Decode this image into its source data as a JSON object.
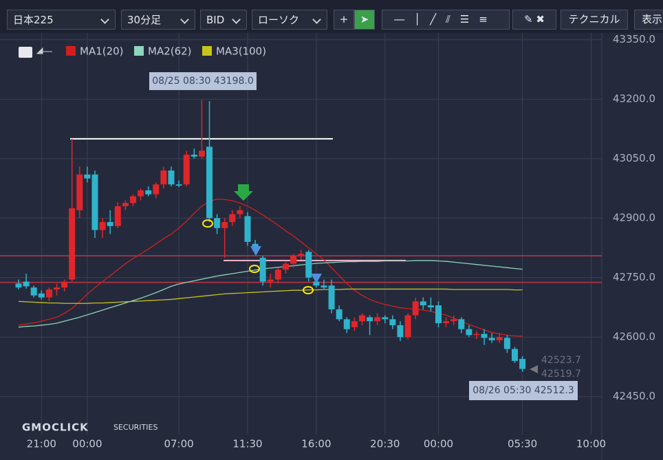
{
  "toolbar": {
    "symbol": "日本225",
    "interval": "30分足",
    "price_type": "BID",
    "chart_style": "ローソク",
    "technical": "テクニカル",
    "display": "表示"
  },
  "logo": {
    "brand": "GMOCLICK",
    "sub": "SECURITIES"
  },
  "chart_data": {
    "type": "candlestick",
    "categories": [
      null,
      null,
      null,
      "21:00",
      null,
      null,
      null,
      null,
      null,
      "00:00",
      null,
      null,
      null,
      null,
      null,
      null,
      null,
      null,
      null,
      null,
      null,
      "07:00",
      null,
      null,
      null,
      null,
      null,
      null,
      null,
      null,
      "11:30",
      null,
      null,
      null,
      null,
      null,
      null,
      null,
      null,
      "16:00",
      null,
      null,
      null,
      null,
      null,
      null,
      null,
      null,
      "20:30",
      null,
      null,
      null,
      null,
      null,
      null,
      "00:00",
      null,
      null,
      null,
      null,
      null,
      null,
      null,
      null,
      null,
      null,
      "05:30",
      null,
      null,
      null,
      null,
      null,
      null,
      null,
      null,
      "10:00"
    ],
    "open": [
      42735,
      42740,
      42725,
      42710,
      42700,
      42720,
      42725,
      42745,
      42920,
      43010,
      43010,
      42870,
      42890,
      42880,
      42930,
      42938,
      42955,
      42970,
      42960,
      42985,
      43020,
      42985,
      42985,
      43060,
      43055,
      43080,
      42900,
      42875,
      42890,
      42910,
      42905,
      42835,
      42800,
      42740,
      42745,
      42770,
      42785,
      42805,
      42815,
      42740,
      42730,
      42730,
      42670,
      42645,
      42625,
      42640,
      42650,
      42640,
      42650,
      42645,
      42630,
      42600,
      42655,
      42690,
      42680,
      42680,
      42635,
      42640,
      42645,
      42620,
      42605,
      42608,
      42598,
      42592,
      42598,
      42570,
      42545,
      null,
      null,
      null,
      null,
      null,
      null,
      null,
      null,
      null
    ],
    "high": [
      42745,
      42760,
      42730,
      42718,
      42725,
      42735,
      42745,
      43100,
      43030,
      43030,
      43020,
      42900,
      42920,
      42940,
      42945,
      42960,
      42975,
      42980,
      42990,
      43030,
      43030,
      42995,
      43070,
      43075,
      43198,
      43195,
      42910,
      42900,
      42920,
      42930,
      42915,
      42845,
      42805,
      42760,
      42775,
      42790,
      42810,
      42820,
      42820,
      42745,
      42745,
      42745,
      42680,
      42650,
      42650,
      42660,
      42655,
      42660,
      42655,
      42655,
      42640,
      42660,
      42700,
      42700,
      42700,
      42690,
      42650,
      42655,
      42650,
      42630,
      42615,
      42620,
      42610,
      42610,
      42605,
      42575,
      42552,
      null,
      null,
      null,
      null,
      null,
      null,
      null,
      null,
      null
    ],
    "low": [
      42720,
      42722,
      42700,
      42695,
      42690,
      42705,
      42715,
      42740,
      42900,
      42990,
      42850,
      42850,
      42860,
      42875,
      42920,
      42930,
      42945,
      42955,
      42950,
      42975,
      42980,
      42978,
      42980,
      43050,
      43050,
      42890,
      42860,
      42800,
      42880,
      42900,
      42830,
      42810,
      42730,
      42725,
      42735,
      42760,
      42775,
      42795,
      42740,
      42725,
      42720,
      42660,
      42640,
      42610,
      42615,
      42630,
      42605,
      42630,
      42635,
      42620,
      42590,
      42595,
      42645,
      42670,
      42665,
      42625,
      42625,
      42630,
      42610,
      42600,
      42595,
      42580,
      42585,
      42585,
      42560,
      42535,
      42512.3,
      null,
      null,
      null,
      null,
      null,
      null,
      null,
      null,
      null
    ],
    "close": [
      42725,
      42728,
      42705,
      42700,
      42720,
      42725,
      42740,
      42925,
      43010,
      43000,
      42870,
      42890,
      42880,
      42930,
      42938,
      42955,
      42970,
      42960,
      42985,
      43020,
      42985,
      42982,
      43060,
      43055,
      43070,
      42900,
      42875,
      42890,
      42910,
      42920,
      42840,
      42820,
      42740,
      42745,
      42770,
      42785,
      42805,
      42810,
      42750,
      42730,
      42725,
      42670,
      42645,
      42620,
      42640,
      42655,
      42640,
      42650,
      42645,
      42630,
      42600,
      42655,
      42690,
      42680,
      42675,
      42635,
      42640,
      42645,
      42620,
      42605,
      42608,
      42598,
      42592,
      42600,
      42570,
      42540,
      42519.7,
      null,
      null,
      null,
      null,
      null,
      null,
      null,
      null,
      null
    ],
    "up_color": "#e0262a",
    "down_color": "#2fb4cc",
    "series": [
      {
        "name": "MA1(20)",
        "color": "#d0201e",
        "values": [
          42630,
          42633,
          42636,
          42640,
          42645,
          42650,
          42660,
          42672,
          42690,
          42708,
          42725,
          42740,
          42755,
          42770,
          42785,
          42798,
          42810,
          42822,
          42835,
          42848,
          42860,
          42875,
          42892,
          42912,
          42930,
          42942,
          42948,
          42947,
          42944,
          42938,
          42930,
          42920,
          42908,
          42895,
          42882,
          42868,
          42855,
          42840,
          42825,
          42810,
          42795,
          42775,
          42755,
          42735,
          42718,
          42705,
          42695,
          42688,
          42682,
          42678,
          42674,
          42672,
          42670,
          42668,
          42665,
          42660,
          42655,
          42648,
          42640,
          42632,
          42625,
          42618,
          42612,
          42608,
          42605,
          42603,
          42602,
          null,
          null,
          null,
          null,
          null,
          null,
          null,
          null,
          null
        ]
      },
      {
        "name": "MA2(62)",
        "color": "#8fd4bc",
        "values": [
          42625,
          42627,
          42628,
          42630,
          42632,
          42635,
          42640,
          42645,
          42650,
          42656,
          42662,
          42668,
          42674,
          42680,
          42686,
          42692,
          42698,
          42705,
          42712,
          42720,
          42728,
          42734,
          42738,
          42742,
          42746,
          42750,
          42754,
          42757,
          42760,
          42763,
          42766,
          42769,
          42772,
          42774,
          42776,
          42778,
          42780,
          42782,
          42784,
          42786,
          42787,
          42788,
          42789,
          42790,
          42790,
          42791,
          42791,
          42791,
          42792,
          42792,
          42792,
          42792,
          42793,
          42793,
          42793,
          42792,
          42791,
          42789,
          42787,
          42785,
          42783,
          42781,
          42779,
          42777,
          42775,
          42773,
          42771,
          null,
          null,
          null,
          null,
          null,
          null,
          null,
          null,
          null
        ]
      },
      {
        "name": "MA3(100)",
        "color": "#c8c41c",
        "values": [
          42690,
          42689,
          42688,
          42687,
          42686,
          42686,
          42685,
          42685,
          42685,
          42685,
          42686,
          42686,
          42687,
          42688,
          42689,
          42690,
          42691,
          42692,
          42693,
          42694,
          42695,
          42697,
          42699,
          42701,
          42703,
          42705,
          42707,
          42709,
          42710,
          42711,
          42712,
          42713,
          42714,
          42715,
          42716,
          42717,
          42718,
          42718,
          42719,
          42719,
          42720,
          42720,
          42720,
          42721,
          42721,
          42721,
          42721,
          42721,
          42721,
          42721,
          42721,
          42721,
          42721,
          42721,
          42721,
          42721,
          42721,
          42720,
          42720,
          42720,
          42720,
          42720,
          42720,
          42720,
          42720,
          42719,
          42719,
          null,
          null,
          null,
          null,
          null,
          null,
          null,
          null,
          null
        ]
      }
    ],
    "ylim": [
      42375,
      43372
    ],
    "yticks": [
      {
        "value": 42450,
        "label": "42450.0"
      },
      {
        "value": 42600,
        "label": "42600.0"
      },
      {
        "value": 42750,
        "label": "42750.0"
      },
      {
        "value": 42900,
        "label": "42900.0"
      },
      {
        "value": 43050,
        "label": "43050.0"
      },
      {
        "value": 43200,
        "label": "43200.0"
      },
      {
        "value": 43350,
        "label": "43350.0"
      }
    ],
    "grid": true,
    "hlines": [
      {
        "value": 42805,
        "color": "#c03545"
      },
      {
        "value": 42738,
        "color": "#c03545"
      }
    ],
    "segments": [
      {
        "value": 43100,
        "color": "#ffffff"
      },
      {
        "value": 42793,
        "color": "#f4b8cc"
      }
    ],
    "annotations": {
      "high_label": "08/25 08:30 43198.0",
      "low_label": "08/26 05:30 42512.3",
      "ask": "42523.7",
      "bid": "42519.7"
    }
  }
}
